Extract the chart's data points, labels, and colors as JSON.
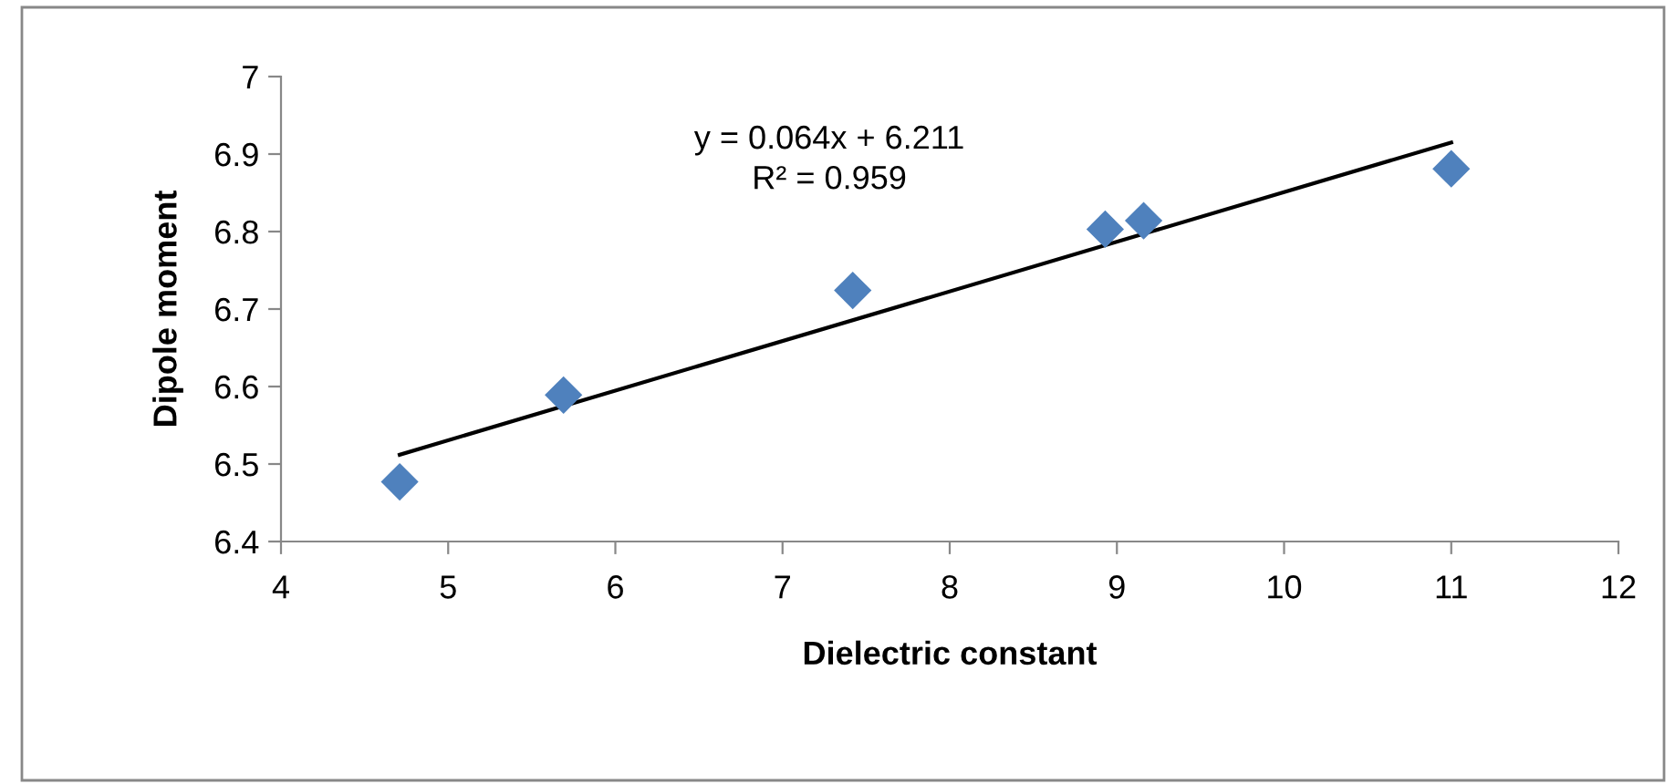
{
  "chart_data": {
    "type": "scatter",
    "xlabel": "Dielectric constant",
    "ylabel": "Dipole moment",
    "annotations": [
      "y = 0.064x + 6.211\nR² = 0.959"
    ],
    "series": [
      {
        "color": "#4f81bd",
        "marker": "diamond",
        "x": [
          4.71,
          5.69,
          7.42,
          8.93,
          9.16,
          11.0
        ],
        "values": [
          6.477,
          6.589,
          6.724,
          6.803,
          6.814,
          6.881
        ]
      },
      {
        "type": "line",
        "color": "#000000",
        "marker": "none",
        "x": [
          4.71,
          11.0
        ],
        "values": [
          6.512,
          6.915
        ]
      }
    ],
    "xlim": [
      4,
      12
    ],
    "xticks": [
      4,
      5,
      6,
      7,
      8,
      9,
      10,
      11,
      12
    ],
    "ylim": [
      6.4,
      7
    ],
    "yticks": [
      6.4,
      6.5,
      6.6,
      6.7,
      6.8,
      6.9,
      7
    ],
    "grid": false,
    "legend": false
  }
}
